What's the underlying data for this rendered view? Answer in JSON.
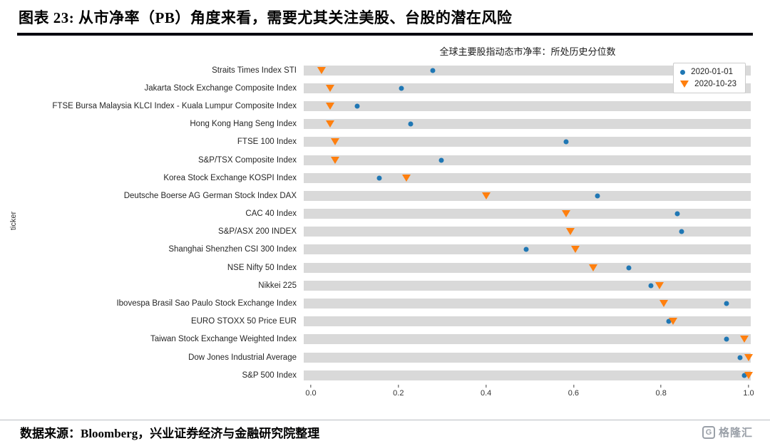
{
  "header": {
    "title": "图表 23: 从市净率（PB）角度来看，需要尤其关注美股、台股的潜在风险"
  },
  "chart_data": {
    "type": "scatter",
    "title": "全球主要股指动态市净率：所处历史分位数",
    "ylabel": "ticker",
    "xlabel": "",
    "xlim": [
      0.0,
      1.0
    ],
    "x_ticks": [
      "0.0",
      "0.2",
      "0.4",
      "0.6",
      "0.8",
      "1.0"
    ],
    "grid": false,
    "legend_position": "top-right",
    "bar_color": "#d9d9d9",
    "legend": [
      {
        "name": "2020-01-01",
        "marker": "circle",
        "color": "#1f77b4"
      },
      {
        "name": "2020-10-23",
        "marker": "triangle-down",
        "color": "#ff7f0e"
      }
    ],
    "categories": [
      "Straits Times Index STI",
      "Jakarta Stock Exchange Composite Index",
      "FTSE Bursa Malaysia KLCI Index - Kuala Lumpur Composite Index",
      "Hong Kong Hang Seng Index",
      "FTSE 100 Index",
      "S&P/TSX Composite Index",
      "Korea Stock Exchange KOSPI Index",
      "Deutsche Boerse AG German Stock Index DAX",
      "CAC 40 Index",
      "S&P/ASX 200 INDEX",
      "Shanghai Shenzhen CSI 300 Index",
      "NSE Nifty 50 Index",
      "Nikkei 225",
      "Ibovespa Brasil Sao Paulo Stock Exchange Index",
      "EURO STOXX 50 Price EUR",
      "Taiwan Stock Exchange Weighted Index",
      "Dow Jones Industrial Average",
      "S&P 500 Index"
    ],
    "series": [
      {
        "name": "2020-01-01",
        "values": [
          0.29,
          0.22,
          0.12,
          0.24,
          0.59,
          0.31,
          0.17,
          0.66,
          0.84,
          0.85,
          0.5,
          0.73,
          0.78,
          0.95,
          0.82,
          0.95,
          0.98,
          0.99
        ]
      },
      {
        "name": "2020-10-23",
        "values": [
          0.04,
          0.06,
          0.06,
          0.06,
          0.07,
          0.07,
          0.23,
          0.41,
          0.59,
          0.6,
          0.61,
          0.65,
          0.8,
          0.81,
          0.83,
          0.99,
          1.0,
          1.0
        ]
      }
    ]
  },
  "footer": {
    "source": "数据来源：Bloomberg，兴业证券经济与金融研究院整理",
    "logo_glyph": "G",
    "logo_text": "格隆汇"
  }
}
